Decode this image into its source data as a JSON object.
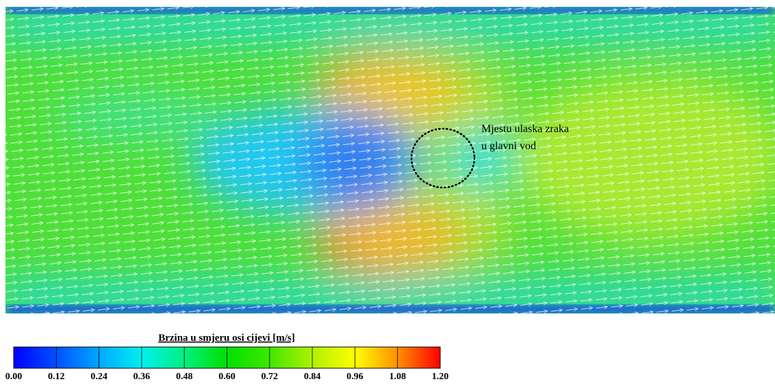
{
  "colorbar": {
    "title": "Brzina u smjeru osi cijevi [m/s]",
    "range": [
      0,
      1.2
    ],
    "ticks": [
      {
        "value": 0,
        "label": "0.00"
      },
      {
        "value": 0.12,
        "label": "0.12"
      },
      {
        "value": 0.24,
        "label": "0.24"
      },
      {
        "value": 0.36,
        "label": "0.36"
      },
      {
        "value": 0.48,
        "label": "0.48"
      },
      {
        "value": 0.6,
        "label": "0.60"
      },
      {
        "value": 0.72,
        "label": "0.72"
      },
      {
        "value": 0.84,
        "label": "0.84"
      },
      {
        "value": 0.96,
        "label": "0.96"
      },
      {
        "value": 1.08,
        "label": "1.08"
      },
      {
        "value": 1.2,
        "label": "1.20"
      }
    ],
    "colors": [
      "#0000ff",
      "#0050ff",
      "#00a8ff",
      "#00f0f0",
      "#00f080",
      "#00e000",
      "#40e800",
      "#b0f000",
      "#ffff00",
      "#ff9000",
      "#ff0000"
    ]
  },
  "annotation": {
    "lines": [
      "Mjestu ulaska zraka",
      "u glavni vod"
    ]
  }
}
